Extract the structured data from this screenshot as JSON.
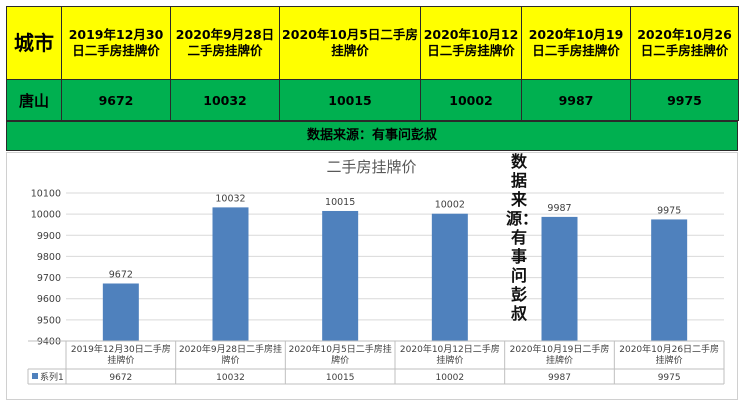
{
  "table": {
    "header_city": "城市",
    "columns": [
      "2019年12月30日二手房挂牌价",
      "2020年9月28日二手房挂牌价",
      "2020年10月5日二手房挂牌价",
      "2020年10月12日二手房挂牌价",
      "2020年10月19日二手房挂牌价",
      "2020年10月26日二手房挂牌价"
    ],
    "row_city": "唐山",
    "row_values": [
      "9672",
      "10032",
      "10015",
      "10002",
      "9987",
      "9975"
    ]
  },
  "source": "数据来源：有事问彭叔",
  "watermark": "数据来源：有事问彭叔",
  "chart_data": {
    "type": "bar",
    "title": "二手房挂牌价",
    "categories": [
      "2019年12月30日二手房挂牌价",
      "2020年9月28日二手房挂牌价",
      "2020年10月5日二手房挂牌价",
      "2020年10月12日二手房挂牌价",
      "2020年10月19日二手房挂牌价",
      "2020年10月26日二手房挂牌价"
    ],
    "series": [
      {
        "name": "系列1",
        "values": [
          9672,
          10032,
          10015,
          10002,
          9987,
          9975
        ]
      }
    ],
    "ylim": [
      9400,
      10100
    ],
    "yticks": [
      9400,
      9500,
      9600,
      9700,
      9800,
      9900,
      10000,
      10100
    ],
    "grid": true,
    "data_table": true,
    "bar_color": "#4f81bd"
  }
}
